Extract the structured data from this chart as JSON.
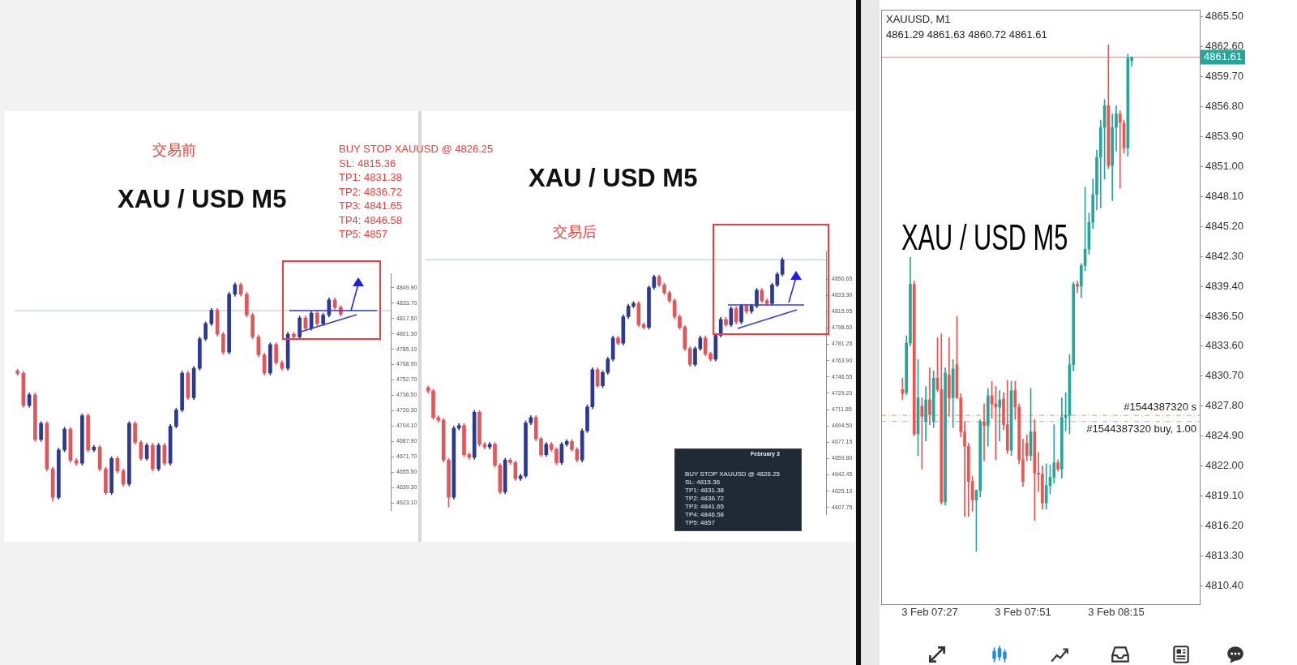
{
  "chart_data": [
    {
      "type": "candlestick",
      "title": "XAU / USD   M5",
      "subtitle": "交易前",
      "annotations": [
        "BUY STOP XAUUSD @ 4826.25",
        "SL: 4815.36",
        "TP1: 4831.38",
        "TP2: 4836.72",
        "TP3: 4841.65",
        "TP4: 4846.58",
        "TP5: 4857"
      ],
      "categories": [
        null,
        null,
        null,
        null,
        null,
        null,
        null,
        null,
        null,
        null,
        null,
        null,
        null,
        null,
        null,
        null,
        null,
        null,
        null,
        null,
        null,
        null,
        null,
        null,
        null,
        null,
        null,
        null,
        null,
        null,
        null,
        null,
        null,
        null,
        null,
        null,
        null,
        null,
        null,
        null,
        null,
        null,
        null,
        null,
        null,
        null,
        null,
        null,
        null,
        null,
        null,
        null,
        null,
        null,
        null,
        null,
        null,
        null,
        null,
        null,
        null,
        null,
        null,
        null
      ],
      "ohlc": [
        [
          4762,
          4764,
          4757.6,
          4759.6
        ],
        [
          4759.6,
          4761.6,
          4724,
          4726
        ],
        [
          4726,
          4739,
          4724,
          4737
        ],
        [
          4737,
          4739,
          4688,
          4690
        ],
        [
          4690,
          4709,
          4688,
          4707
        ],
        [
          4707,
          4709,
          4657,
          4659
        ],
        [
          4659,
          4661,
          4625,
          4629
        ],
        [
          4629,
          4681,
          4627,
          4679
        ],
        [
          4679,
          4703,
          4677,
          4701
        ],
        [
          4701,
          4703,
          4666,
          4668
        ],
        [
          4668,
          4670,
          4663,
          4665
        ],
        [
          4665,
          4717,
          4663,
          4715
        ],
        [
          4715,
          4717,
          4677,
          4679
        ],
        [
          4679,
          4684,
          4677,
          4682
        ],
        [
          4682,
          4684,
          4657,
          4659
        ],
        [
          4659,
          4661,
          4632,
          4634
        ],
        [
          4634,
          4672,
          4632,
          4670
        ],
        [
          4670,
          4672,
          4655,
          4657
        ],
        [
          4657,
          4659,
          4641,
          4643
        ],
        [
          4643,
          4709,
          4641,
          4707
        ],
        [
          4707,
          4709,
          4685,
          4687
        ],
        [
          4687,
          4689,
          4668,
          4670
        ],
        [
          4670,
          4686,
          4668,
          4684
        ],
        [
          4684,
          4686,
          4657,
          4659
        ],
        [
          4659,
          4686,
          4657,
          4684
        ],
        [
          4684,
          4686,
          4663,
          4665
        ],
        [
          4665,
          4706,
          4663,
          4704
        ],
        [
          4704,
          4723,
          4702,
          4721
        ],
        [
          4721,
          4762,
          4719,
          4760
        ],
        [
          4760,
          4762,
          4732,
          4734
        ],
        [
          4734,
          4767,
          4732,
          4765
        ],
        [
          4765,
          4798,
          4763,
          4796
        ],
        [
          4796,
          4814,
          4794,
          4812
        ],
        [
          4812,
          4828,
          4810,
          4826
        ],
        [
          4826,
          4828,
          4799,
          4801
        ],
        [
          4801,
          4803,
          4780,
          4782
        ],
        [
          4782,
          4845,
          4780,
          4843
        ],
        [
          4843,
          4855,
          4841,
          4853
        ],
        [
          4853,
          4855,
          4841,
          4843
        ],
        [
          4843,
          4845,
          4819,
          4821
        ],
        [
          4821,
          4823,
          4796,
          4798
        ],
        [
          4798,
          4800,
          4777,
          4779
        ],
        [
          4779,
          4781,
          4758,
          4760
        ],
        [
          4760,
          4792,
          4758,
          4790
        ],
        [
          4790,
          4792,
          4769,
          4771
        ],
        [
          4771,
          4773,
          4763,
          4765
        ],
        [
          4765,
          4803,
          4763,
          4801
        ],
        [
          4801,
          4803,
          4796,
          4798
        ],
        [
          4798,
          4820,
          4796,
          4818
        ],
        [
          4818,
          4820,
          4805,
          4807
        ],
        [
          4807,
          4825,
          4805,
          4823
        ],
        [
          4823,
          4825,
          4810,
          4812
        ],
        [
          4812,
          4823,
          4810,
          4821
        ],
        [
          4821,
          4839,
          4819,
          4837
        ],
        [
          4837,
          4839,
          4827,
          4829
        ],
        [
          4829,
          4831,
          4820,
          4822
        ],
        null,
        null,
        null,
        null,
        null,
        null,
        null,
        null
      ],
      "colors": [
        "#e0575b",
        "#e0575b",
        "#2b3990",
        "#e0575b",
        "#2b3990",
        "#e0575b",
        "#e0575b",
        "#2b3990",
        "#2b3990",
        "#e0575b",
        "#e0575b",
        "#2b3990",
        "#e0575b",
        "#2b3990",
        "#e0575b",
        "#e0575b",
        "#2b3990",
        "#e0575b",
        "#e0575b",
        "#2b3990",
        "#e0575b",
        "#e0575b",
        "#2b3990",
        "#e0575b",
        "#2b3990",
        "#e0575b",
        "#2b3990",
        "#2b3990",
        "#2b3990",
        "#e0575b",
        "#2b3990",
        "#2b3990",
        "#2b3990",
        "#2b3990",
        "#e0575b",
        "#e0575b",
        "#2b3990",
        "#2b3990",
        "#e0575b",
        "#e0575b",
        "#e0575b",
        "#e0575b",
        "#e0575b",
        "#2b3990",
        "#e0575b",
        "#e0575b",
        "#2b3990",
        "#e0575b",
        "#2b3990",
        "#e0575b",
        "#2b3990",
        "#e0575b",
        "#2b3990",
        "#2b3990",
        "#e0575b",
        "#e0575b",
        null,
        null,
        null,
        null,
        null,
        null,
        null,
        null
      ],
      "ylim": [
        4615,
        4865
      ],
      "yticks": [
        {
          "value": 4849.9,
          "label": "4849.90"
        },
        {
          "value": 4833.7,
          "label": "4833.70"
        },
        {
          "value": 4817.5,
          "label": "4817.50"
        },
        {
          "value": 4801.3,
          "label": "4801.30"
        },
        {
          "value": 4785.1,
          "label": "4785.10"
        },
        {
          "value": 4768.9,
          "label": "4768.90"
        },
        {
          "value": 4752.7,
          "label": "4752.70"
        },
        {
          "value": 4736.5,
          "label": "4736.50"
        },
        {
          "value": 4720.3,
          "label": "4720.30"
        },
        {
          "value": 4704.1,
          "label": "4704.10"
        },
        {
          "value": 4687.9,
          "label": "4687.90"
        },
        {
          "value": 4671.7,
          "label": "4671.70"
        },
        {
          "value": 4655.5,
          "label": "4655.50"
        },
        {
          "value": 4639.3,
          "label": "4639.30"
        },
        {
          "value": 4623.1,
          "label": "4623.10"
        }
      ],
      "ref_lines": [
        {
          "axis": "y",
          "value": 4825.7,
          "color": "#b8c4c8"
        }
      ],
      "tick_labels": "y"
    },
    {
      "type": "candlestick",
      "title": "XAU / USD   M5",
      "subtitle": "交易后",
      "annotations": [
        "February 3",
        "BUY STOP XAUUSD @ 4826.25",
        "SL: 4815.36",
        "TP1: 4831.38",
        "TP2: 4836.72",
        "TP3: 4841.65",
        "TP4: 4846.58",
        "TP5: 4857"
      ],
      "categories": [
        null,
        null,
        null,
        null,
        null,
        null,
        null,
        null,
        null,
        null,
        null,
        null,
        null,
        null,
        null,
        null,
        null,
        null,
        null,
        null,
        null,
        null,
        null,
        null,
        null,
        null,
        null,
        null,
        null,
        null,
        null,
        null,
        null,
        null,
        null,
        null,
        null,
        null,
        null,
        null,
        null,
        null,
        null,
        null,
        null,
        null,
        null,
        null,
        null,
        null,
        null,
        null,
        null,
        null,
        null,
        null,
        null,
        null,
        null,
        null,
        null,
        null,
        null,
        null,
        null,
        null,
        null,
        null,
        null,
        null,
        null,
        null,
        null,
        null,
        null,
        null,
        null,
        null
      ],
      "ohlc": [
        [
          4735,
          4737,
          4729.6,
          4731.6
        ],
        [
          4731.6,
          4733.6,
          4701.4,
          4703.4
        ],
        [
          4703.4,
          4705.4,
          4698.6,
          4700.6
        ],
        [
          4700.6,
          4702.6,
          4656.2,
          4658.2
        ],
        [
          4658.2,
          4660.2,
          4608,
          4618.7
        ],
        [
          4618.7,
          4694.1,
          4616.7,
          4692.1
        ],
        [
          4692.1,
          4696.9,
          4690.1,
          4694.9
        ],
        [
          4694.9,
          4696.9,
          4661.9,
          4663.9
        ],
        [
          4663.9,
          4665.9,
          4659,
          4661
        ],
        [
          4661,
          4711,
          4659,
          4709
        ],
        [
          4709,
          4711,
          4673,
          4675
        ],
        [
          4675,
          4677,
          4670,
          4672
        ],
        [
          4672,
          4677,
          4670,
          4675
        ],
        [
          4675,
          4677,
          4650.6,
          4652.6
        ],
        [
          4652.6,
          4654.6,
          4622.4,
          4624.4
        ],
        [
          4624.4,
          4660.2,
          4622.4,
          4658.2
        ],
        [
          4658.2,
          4660.2,
          4653.4,
          4655.4
        ],
        [
          4655.4,
          4657.4,
          4636.5,
          4638.5
        ],
        [
          4638.5,
          4643.3,
          4636.5,
          4641.3
        ],
        [
          4641.3,
          4699.7,
          4639.3,
          4697.7
        ],
        [
          4697.7,
          4705.4,
          4695.7,
          4703.4
        ],
        [
          4703.4,
          4705.4,
          4678.8,
          4680.8
        ],
        [
          4680.8,
          4682.8,
          4661.9,
          4663.9
        ],
        [
          4663.9,
          4677,
          4661.9,
          4675
        ],
        [
          4675,
          4677,
          4667.5,
          4669.5
        ],
        [
          4669.5,
          4671.5,
          4653.4,
          4655.4
        ],
        [
          4655.4,
          4677,
          4653.4,
          4675
        ],
        [
          4675,
          4680,
          4673,
          4678
        ],
        [
          4678,
          4680,
          4667.5,
          4669.5
        ],
        [
          4669.5,
          4671.5,
          4656.2,
          4658.2
        ],
        [
          4658.2,
          4691.3,
          4656.2,
          4689.3
        ],
        [
          4689.3,
          4716.7,
          4687.3,
          4714.7
        ],
        [
          4714.7,
          4756.2,
          4712.7,
          4754.2
        ],
        [
          4754.2,
          4756.2,
          4735.2,
          4737.2
        ],
        [
          4737.2,
          4753.3,
          4735.2,
          4751.3
        ],
        [
          4751.3,
          4767.4,
          4749.3,
          4765.4
        ],
        [
          4765.4,
          4790,
          4763.4,
          4788
        ],
        [
          4788,
          4790,
          4780.4,
          4782.4
        ],
        [
          4782.4,
          4812.6,
          4780.4,
          4810.6
        ],
        [
          4810.6,
          4823.9,
          4808.6,
          4821.9
        ],
        [
          4821.9,
          4826.7,
          4819.9,
          4824.7
        ],
        [
          4824.7,
          4826.7,
          4800.1,
          4802.1
        ],
        [
          4802.1,
          4804.1,
          4797.3,
          4799.3
        ],
        [
          4799.3,
          4843.6,
          4797.3,
          4841.6
        ],
        [
          4841.6,
          4854.9,
          4839.6,
          4852.9
        ],
        [
          4852.9,
          4854.9,
          4842.4,
          4844.4
        ],
        [
          4844.4,
          4846.4,
          4834,
          4836
        ],
        [
          4836,
          4838,
          4825.5,
          4827.5
        ],
        [
          4827.5,
          4829.5,
          4808.6,
          4810.6
        ],
        [
          4810.6,
          4812.6,
          4797.3,
          4799.3
        ],
        [
          4799.3,
          4801.3,
          4774.7,
          4776.7
        ],
        [
          4776.7,
          4778.7,
          4757.8,
          4759.8
        ],
        [
          4759.8,
          4778.7,
          4757.8,
          4776.7
        ],
        [
          4776.7,
          4790,
          4774.7,
          4788
        ],
        [
          4788,
          4790,
          4769.1,
          4771.1
        ],
        [
          4771.1,
          4773.1,
          4763.4,
          4765.4
        ],
        [
          4765.4,
          4792.8,
          4763.4,
          4790.8
        ],
        [
          4790.8,
          4809.8,
          4788.8,
          4807.8
        ],
        [
          4807.8,
          4809.8,
          4800.1,
          4802.1
        ],
        [
          4802.1,
          4821.1,
          4800.1,
          4819.1
        ],
        [
          4819.1,
          4821.1,
          4803,
          4805
        ],
        [
          4805,
          4823.9,
          4803,
          4821.9
        ],
        [
          4821.9,
          4823.9,
          4814.2,
          4816.2
        ],
        [
          4816.2,
          4823.9,
          4814.2,
          4821.9
        ],
        [
          4821.9,
          4840.8,
          4819.9,
          4838.8
        ],
        [
          4838.8,
          4840.8,
          4825.5,
          4827.5
        ],
        [
          4827.5,
          4829.5,
          4822.7,
          4824.7
        ],
        [
          4824.7,
          4846.4,
          4822.7,
          4844.4
        ],
        [
          4844.4,
          4857.7,
          4842.4,
          4855.7
        ],
        [
          4855.7,
          4873.2,
          4853.7,
          4871.2
        ],
        null,
        null,
        null,
        null,
        null,
        null,
        null,
        null
      ],
      "colors": [
        "#e0575b",
        "#e0575b",
        "#e0575b",
        "#e0575b",
        "#e0575b",
        "#2b3990",
        "#2b3990",
        "#e0575b",
        "#e0575b",
        "#2b3990",
        "#e0575b",
        "#e0575b",
        "#2b3990",
        "#e0575b",
        "#e0575b",
        "#2b3990",
        "#e0575b",
        "#e0575b",
        "#2b3990",
        "#2b3990",
        "#2b3990",
        "#e0575b",
        "#e0575b",
        "#2b3990",
        "#e0575b",
        "#e0575b",
        "#2b3990",
        "#2b3990",
        "#e0575b",
        "#e0575b",
        "#2b3990",
        "#2b3990",
        "#2b3990",
        "#e0575b",
        "#2b3990",
        "#2b3990",
        "#2b3990",
        "#e0575b",
        "#2b3990",
        "#2b3990",
        "#2b3990",
        "#e0575b",
        "#e0575b",
        "#2b3990",
        "#2b3990",
        "#e0575b",
        "#e0575b",
        "#e0575b",
        "#e0575b",
        "#e0575b",
        "#e0575b",
        "#e0575b",
        "#2b3990",
        "#2b3990",
        "#e0575b",
        "#e0575b",
        "#2b3990",
        "#2b3990",
        "#e0575b",
        "#2b3990",
        "#e0575b",
        "#2b3990",
        "#e0575b",
        "#2b3990",
        "#2b3990",
        "#e0575b",
        "#e0575b",
        "#2b3990",
        "#2b3990",
        "#2b3990",
        null,
        null,
        null,
        null,
        null,
        null,
        null,
        null
      ],
      "ylim": [
        4600,
        4880
      ],
      "yticks": [
        {
          "value": 4850.65,
          "label": "4850.65"
        },
        {
          "value": 4833.3,
          "label": "4833.30"
        },
        {
          "value": 4815.95,
          "label": "4815.95"
        },
        {
          "value": 4798.6,
          "label": "4798.60"
        },
        {
          "value": 4781.25,
          "label": "4781.25"
        },
        {
          "value": 4763.9,
          "label": "4763.90"
        },
        {
          "value": 4746.55,
          "label": "4746.55"
        },
        {
          "value": 4729.2,
          "label": "4729.20"
        },
        {
          "value": 4711.85,
          "label": "4711.85"
        },
        {
          "value": 4694.5,
          "label": "4694.50"
        },
        {
          "value": 4677.15,
          "label": "4677.15"
        },
        {
          "value": 4659.8,
          "label": "4659.80"
        },
        {
          "value": 4642.45,
          "label": "4642.45"
        },
        {
          "value": 4625.1,
          "label": "4625.10"
        },
        {
          "value": 4607.75,
          "label": "4607.75"
        }
      ],
      "ref_lines": [
        {
          "axis": "y",
          "value": 4871.2,
          "color": "#b8c4c8"
        }
      ],
      "tick_labels": "y"
    },
    {
      "type": "candlestick",
      "title": "XAUUSD, M1",
      "subtitle": "4861.29 4861.63 4860.72 4861.61",
      "annotations": [
        "XAU / USD  M5"
      ],
      "categories": [
        null,
        null,
        null,
        null,
        null,
        null,
        null,
        null,
        null,
        null,
        null,
        null,
        "3 Feb 07:27",
        null,
        null,
        null,
        null,
        null,
        null,
        null,
        null,
        null,
        null,
        null,
        null,
        null,
        null,
        null,
        null,
        null,
        null,
        null,
        null,
        null,
        null,
        null,
        "3 Feb 07:51",
        null,
        null,
        null,
        null,
        null,
        null,
        null,
        null,
        null,
        null,
        null,
        null,
        null,
        null,
        null,
        null,
        null,
        null,
        null,
        null,
        null,
        null,
        null,
        "3 Feb 08:15",
        null,
        null,
        null,
        null,
        null,
        null,
        null,
        null,
        null,
        null,
        null,
        null,
        null,
        null,
        null,
        null,
        null,
        null,
        null,
        null,
        null
      ],
      "ohlc": [
        null,
        null,
        null,
        null,
        null,
        [
          4829.4,
          4830.5,
          4828.4,
          4829.0
        ],
        [
          4829.1,
          4834.6,
          4828.9,
          4833.9
        ],
        [
          4833.9,
          4842.2,
          4833.6,
          4839.6
        ],
        [
          4839.6,
          4839.9,
          4824.9,
          4825.1
        ],
        [
          4825.1,
          4832.3,
          4823.0,
          4828.6
        ],
        [
          4827.8,
          4828.6,
          4821.7,
          4826.8
        ],
        [
          4826.3,
          4829.7,
          4824.4,
          4828.4
        ],
        [
          4828.4,
          4831.5,
          4826.0,
          4827.0
        ],
        [
          4826.3,
          4831.2,
          4825.7,
          4830.5
        ],
        [
          4830.5,
          4834.4,
          4829.2,
          4829.4
        ],
        [
          4829.4,
          4834.8,
          4818.3,
          4818.5
        ],
        [
          4818.5,
          4831.5,
          4818.2,
          4831.0
        ],
        [
          4830.8,
          4834.4,
          4826.8,
          4828.6
        ],
        [
          4828.6,
          4832.3,
          4825.7,
          4831.4
        ],
        [
          4831.8,
          4836.5,
          4828.5,
          4828.6
        ],
        [
          4828.6,
          4829.0,
          4824.8,
          4825.3
        ],
        [
          4825.3,
          4826.3,
          4817.1,
          4823.9
        ],
        [
          4823.9,
          4824.2,
          4817.1,
          4820.5
        ],
        [
          4820.5,
          4821.0,
          4817.6,
          4818.7
        ],
        [
          4818.7,
          4819.7,
          4813.7,
          4819.6
        ],
        [
          4819.6,
          4826.5,
          4819.0,
          4826.3
        ],
        [
          4826.3,
          4828.0,
          4822.5,
          4825.9
        ],
        [
          4825.9,
          4829.5,
          4823.9,
          4828.8
        ],
        [
          4828.8,
          4830.2,
          4826.6,
          4828.0
        ],
        [
          4828.0,
          4829.7,
          4822.6,
          4827.7
        ],
        [
          4827.7,
          4829.3,
          4824.4,
          4828.4
        ],
        [
          4828.5,
          4829.1,
          4825.5,
          4826.0
        ],
        [
          4826.0,
          4830.3,
          4823.2,
          4823.5
        ],
        [
          4823.5,
          4830.2,
          4823.0,
          4829.3
        ],
        [
          4829.3,
          4830.2,
          4826.5,
          4827.7
        ],
        [
          4827.7,
          4828.0,
          4822.2,
          4822.6
        ],
        [
          4822.6,
          4824.6,
          4820.0,
          4820.5
        ],
        [
          4824.2,
          4825.0,
          4822.5,
          4823.0
        ],
        [
          4823.0,
          4829.5,
          4822.5,
          4825.3
        ],
        [
          4825.3,
          4826.5,
          4816.7,
          4821.3
        ],
        [
          4821.3,
          4823.3,
          4819.5,
          4821.2
        ],
        [
          4821.2,
          4822.0,
          4817.8,
          4818.4
        ],
        [
          4818.4,
          4822.2,
          4817.8,
          4820.1
        ],
        [
          4820.1,
          4822.1,
          4819.3,
          4820.9
        ],
        [
          4820.9,
          4826.0,
          4820.3,
          4822.3
        ],
        [
          4822.3,
          4822.6,
          4821.5,
          4821.7
        ],
        [
          4821.7,
          4828.6,
          4820.8,
          4826.7
        ],
        [
          4826.7,
          4829.1,
          4825.4,
          4826.9
        ],
        [
          4826.9,
          4832.8,
          4825.1,
          4831.8
        ],
        [
          4831.8,
          4839.8,
          4831.2,
          4839.6
        ],
        [
          4839.6,
          4839.9,
          4838.8,
          4839.4
        ],
        [
          4839.4,
          4841.6,
          4838.3,
          4841.4
        ],
        [
          4841.4,
          4849.0,
          4840.9,
          4843.0
        ],
        [
          4843.0,
          4846.5,
          4842.5,
          4845.6
        ],
        [
          4845.6,
          4849.8,
          4845.0,
          4848.3
        ],
        [
          4848.3,
          4852.6,
          4846.8,
          4851.9
        ],
        [
          4851.9,
          4855.5,
          4847.0,
          4854.8
        ],
        [
          4854.8,
          4857.5,
          4849.8,
          4856.9
        ],
        [
          4856.9,
          4862.8,
          4850.8,
          4851.1
        ],
        [
          4851.1,
          4856.1,
          4847.7,
          4854.8
        ],
        [
          4854.8,
          4856.9,
          4852.5,
          4856.1
        ],
        [
          4856.1,
          4856.4,
          4848.9,
          4855.3
        ],
        [
          4855.2,
          4855.5,
          4852.3,
          4852.8
        ],
        [
          4852.8,
          4861.9,
          4852.0,
          4861.5
        ],
        [
          4861.29,
          4861.63,
          4860.72,
          4861.61
        ],
        null,
        null,
        null,
        null,
        null,
        null,
        null,
        null,
        null,
        null,
        null,
        null,
        null,
        null,
        null,
        null,
        null
      ],
      "colors": [
        null,
        null,
        null,
        null,
        null,
        "#ef5350",
        "#26a69a",
        "#26a69a",
        "#ef5350",
        "#26a69a",
        "#ef5350",
        "#26a69a",
        "#ef5350",
        "#26a69a",
        "#ef5350",
        "#ef5350",
        "#26a69a",
        "#ef5350",
        "#26a69a",
        "#ef5350",
        "#ef5350",
        "#ef5350",
        "#ef5350",
        "#ef5350",
        "#26a69a",
        "#26a69a",
        "#ef5350",
        "#26a69a",
        "#ef5350",
        "#ef5350",
        "#26a69a",
        "#ef5350",
        "#ef5350",
        "#26a69a",
        "#ef5350",
        "#ef5350",
        "#ef5350",
        "#ef5350",
        "#26a69a",
        "#ef5350",
        "#ef5350",
        "#ef5350",
        "#26a69a",
        "#26a69a",
        "#26a69a",
        "#ef5350",
        "#26a69a",
        "#26a69a",
        "#26a69a",
        "#26a69a",
        "#ef5350",
        "#26a69a",
        "#26a69a",
        "#26a69a",
        "#26a69a",
        "#26a69a",
        "#26a69a",
        "#26a69a",
        "#ef5350",
        "#26a69a",
        "#26a69a",
        "#ef5350",
        "#ef5350",
        "#26a69a",
        "#26a69a",
        null,
        null,
        null,
        null,
        null,
        null,
        null,
        null,
        null,
        null,
        null,
        null,
        null,
        null,
        null,
        null,
        null
      ],
      "ylim": [
        4808.6,
        4866.2
      ],
      "yticks": [
        {
          "value": 4865.5,
          "label": "4865.50"
        },
        {
          "value": 4862.6,
          "label": "4862.60"
        },
        {
          "value": 4859.7,
          "label": "4859.70"
        },
        {
          "value": 4856.8,
          "label": "4856.80"
        },
        {
          "value": 4853.9,
          "label": "4853.90"
        },
        {
          "value": 4851,
          "label": "4851.00"
        },
        {
          "value": 4848.1,
          "label": "4848.10"
        },
        {
          "value": 4845.2,
          "label": "4845.20"
        },
        {
          "value": 4842.3,
          "label": "4842.30"
        },
        {
          "value": 4839.4,
          "label": "4839.40"
        },
        {
          "value": 4836.5,
          "label": "4836.50"
        },
        {
          "value": 4833.6,
          "label": "4833.60"
        },
        {
          "value": 4830.7,
          "label": "4830.70"
        },
        {
          "value": 4827.8,
          "label": "4827.80"
        },
        {
          "value": 4824.9,
          "label": "4824.90"
        },
        {
          "value": 4822,
          "label": "4822.00"
        },
        {
          "value": 4819.1,
          "label": "4819.10"
        },
        {
          "value": 4816.2,
          "label": "4816.20"
        },
        {
          "value": 4813.3,
          "label": "4813.30"
        },
        {
          "value": 4810.4,
          "label": "4810.40"
        }
      ],
      "ref_lines": [
        {
          "axis": "y",
          "value": 4861.61,
          "label": "4861.61",
          "color": "#c99a9a"
        },
        {
          "axis": "y",
          "value": 4826.9,
          "label": "#1544387320 s",
          "color": "#e0a070",
          "line_style": "dashed"
        },
        {
          "axis": "y",
          "value": 4826.3,
          "label": "#1544387320 buy, 1.00",
          "color": "#7cc4c8",
          "line_style": "dashed"
        }
      ]
    }
  ]
}
